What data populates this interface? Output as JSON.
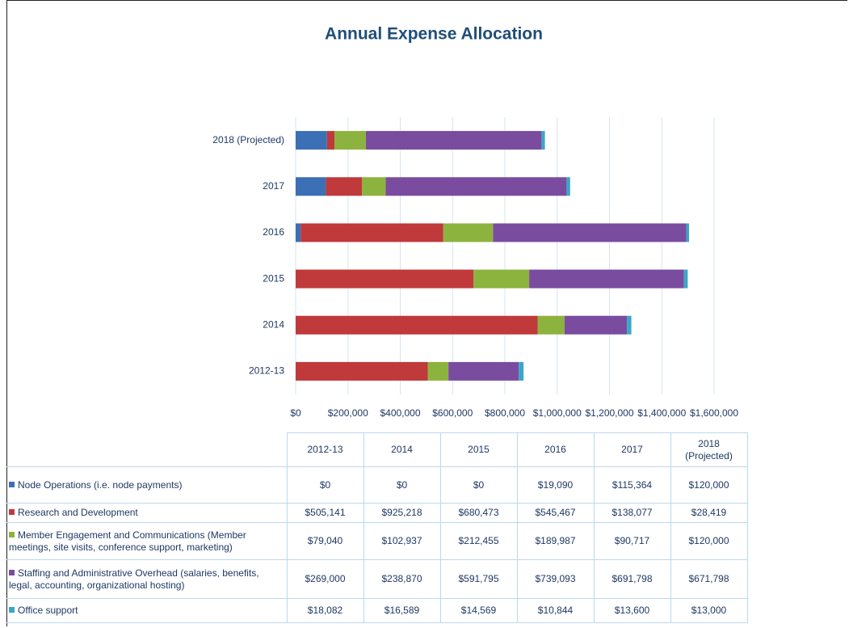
{
  "chart_data": {
    "type": "stacked_barh",
    "title": "Annual Expense Allocation",
    "categories": [
      "2012-13",
      "2014",
      "2015",
      "2016",
      "2017",
      "2018 (Projected)"
    ],
    "series": [
      {
        "name": "Node Operations (i.e. node payments)",
        "color": "#3b6fb6",
        "values": [
          0,
          0,
          0,
          19090,
          115364,
          120000
        ],
        "value_labels": [
          "$0",
          "$0",
          "$0",
          "$19,090",
          "$115,364",
          "$120,000"
        ]
      },
      {
        "name": "Research and Development",
        "color": "#c0393b",
        "values": [
          505141,
          925218,
          680473,
          545467,
          138077,
          28419
        ],
        "value_labels": [
          "$505,141",
          "$925,218",
          "$680,473",
          "$545,467",
          "$138,077",
          "$28,419"
        ]
      },
      {
        "name": "Member Engagement and Communications (Member meetings, site visits, conference support, marketing)",
        "color": "#8db33f",
        "values": [
          79040,
          102937,
          212455,
          189987,
          90717,
          120000
        ],
        "value_labels": [
          "$79,040",
          "$102,937",
          "$212,455",
          "$189,987",
          "$90,717",
          "$120,000"
        ]
      },
      {
        "name": "Staffing and Administrative Overhead (salaries, benefits, legal, accounting, organizational hosting)",
        "color": "#7a4c9f",
        "values": [
          269000,
          238870,
          591795,
          739093,
          691798,
          671798
        ],
        "value_labels": [
          "$269,000",
          "$238,870",
          "$591,795",
          "$739,093",
          "$691,798",
          "$671,798"
        ]
      },
      {
        "name": "Office support",
        "color": "#3aa6c8",
        "values": [
          18082,
          16589,
          14569,
          10844,
          13600,
          13000
        ],
        "value_labels": [
          "$18,082",
          "$16,589",
          "$14,569",
          "$10,844",
          "$13,600",
          "$13,000"
        ]
      }
    ],
    "xlim": [
      0,
      1600000
    ],
    "xticks": [
      {
        "value": 0,
        "label": "$0"
      },
      {
        "value": 200000,
        "label": "$200,000"
      },
      {
        "value": 400000,
        "label": "$400,000"
      },
      {
        "value": 600000,
        "label": "$600,000"
      },
      {
        "value": 800000,
        "label": "$800,000"
      },
      {
        "value": 1000000,
        "label": "$1,000,000"
      },
      {
        "value": 1200000,
        "label": "$1,200,000"
      },
      {
        "value": 1400000,
        "label": "$1,400,000"
      },
      {
        "value": 1600000,
        "label": "$1,600,000"
      }
    ],
    "grid": true
  }
}
